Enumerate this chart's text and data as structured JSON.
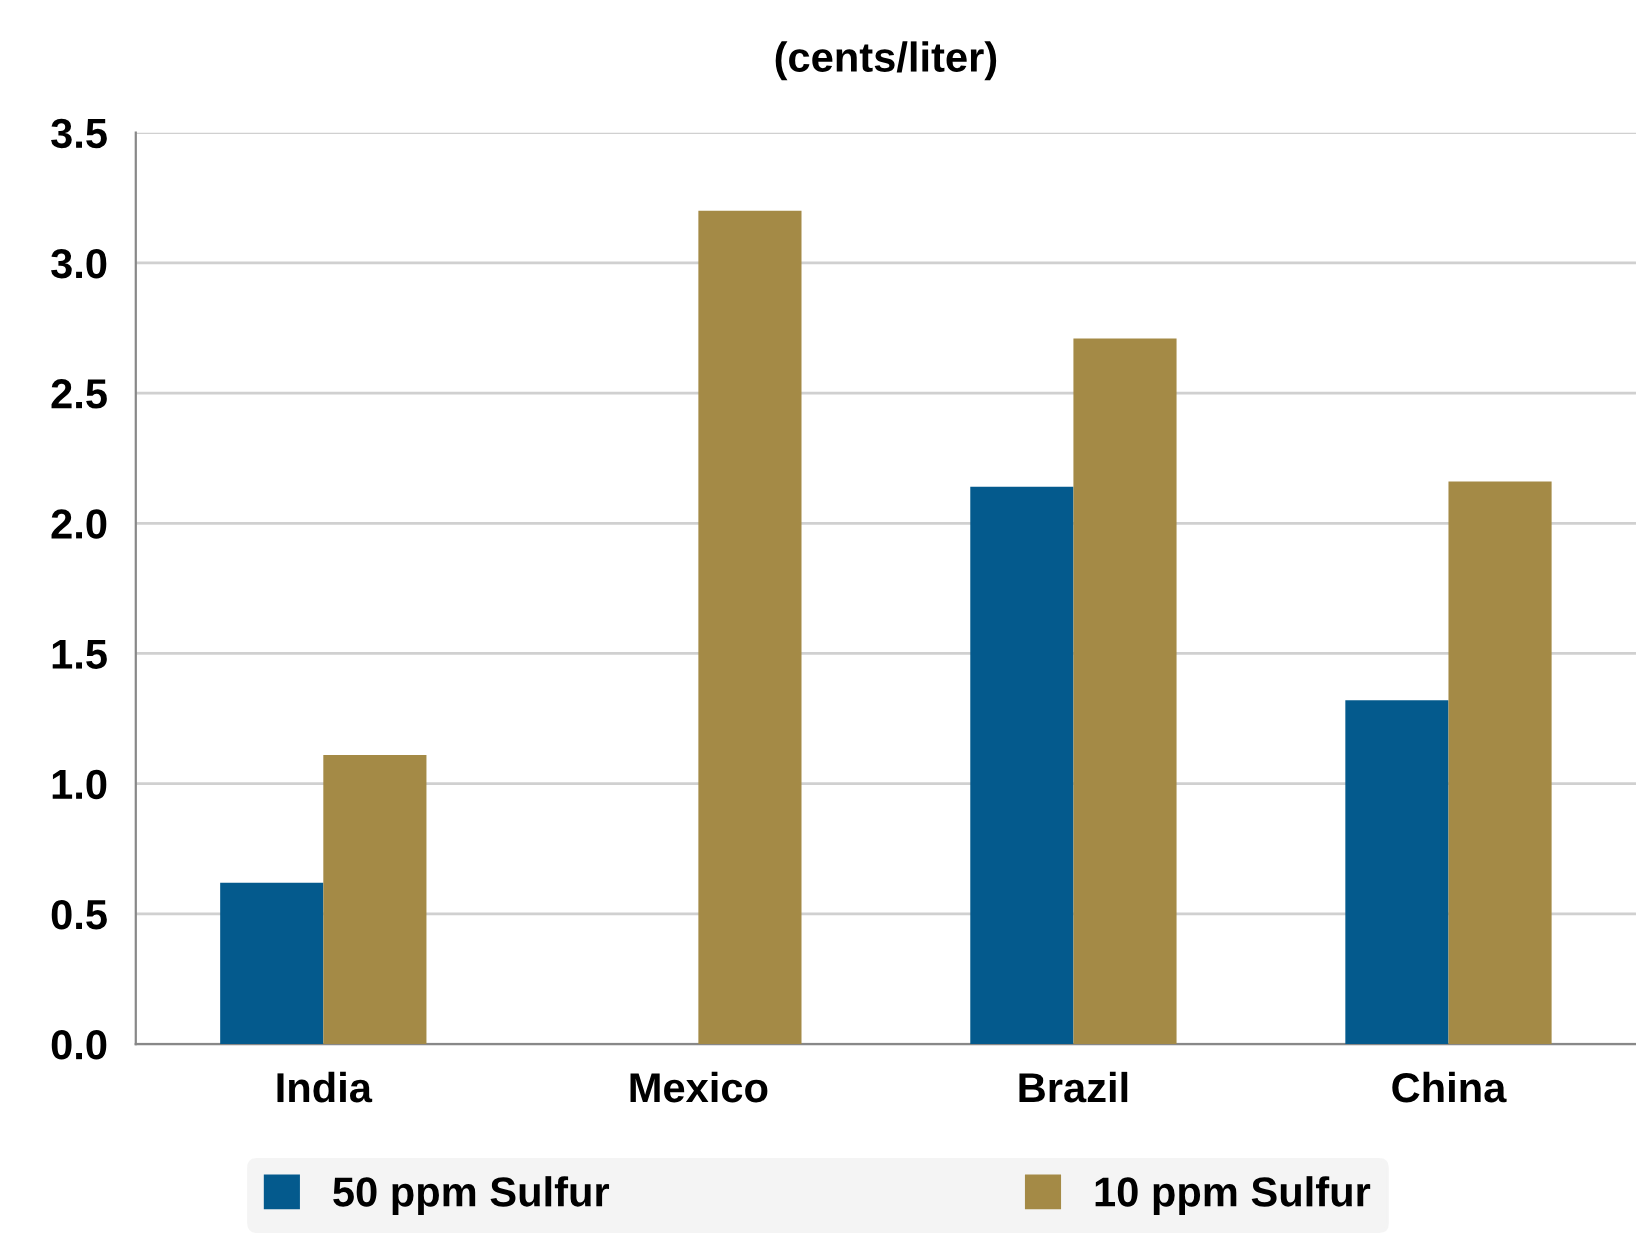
{
  "chart_data": {
    "type": "bar",
    "title": "(cents/liter)",
    "categories": [
      "India",
      "Mexico",
      "Brazil",
      "China"
    ],
    "series": [
      {
        "name": "50 ppm Sulfur",
        "color": "#045a8d",
        "values": [
          0.62,
          null,
          2.14,
          1.32
        ]
      },
      {
        "name": "10 ppm Sulfur",
        "color": "#a48a46",
        "values": [
          1.11,
          3.2,
          2.71,
          2.16
        ]
      }
    ],
    "ylim": [
      0,
      3.5
    ],
    "yticks": [
      {
        "value": 0,
        "label": "0.0"
      },
      {
        "value": 0.5,
        "label": "0.5"
      },
      {
        "value": 1,
        "label": "1.0"
      },
      {
        "value": 1.5,
        "label": "1.5"
      },
      {
        "value": 2,
        "label": "2.0"
      },
      {
        "value": 2.5,
        "label": "2.5"
      },
      {
        "value": 3,
        "label": "3.0"
      },
      {
        "value": 3.5,
        "label": "3.5"
      }
    ],
    "grid": "y",
    "legend": "bottom"
  }
}
